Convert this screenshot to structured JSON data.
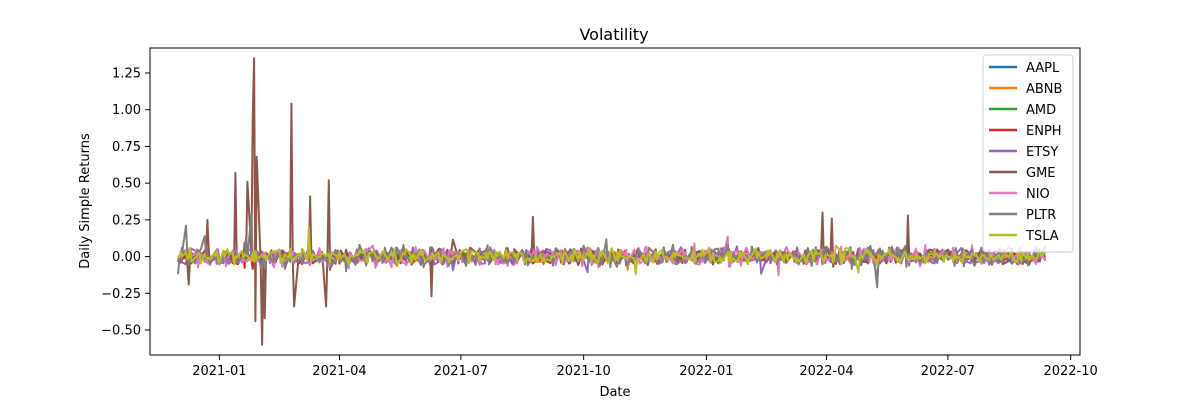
{
  "chart_data": {
    "type": "line",
    "title": "Volatility",
    "xlabel": "Date",
    "ylabel": "Daily Simple Returns",
    "xlim": [
      "2020-11-10",
      "2022-10-08"
    ],
    "ylim": [
      -0.67,
      1.42
    ],
    "x_ticks": [
      "2021-01",
      "2021-04",
      "2021-07",
      "2021-10",
      "2022-01",
      "2022-04",
      "2022-07",
      "2022-10"
    ],
    "y_ticks": [
      -0.5,
      -0.25,
      0.0,
      0.25,
      0.5,
      0.75,
      1.0,
      1.25
    ],
    "y_tick_labels": [
      "−0.50",
      "−0.25",
      "0.00",
      "0.25",
      "0.50",
      "0.75",
      "1.00",
      "1.25"
    ],
    "grid": false,
    "legend_position": "upper right",
    "date_range": [
      "2020-12-01",
      "2022-09-12"
    ],
    "series": [
      {
        "name": "AAPL",
        "color": "#1f77b4",
        "amplitude": 0.022
      },
      {
        "name": "ABNB",
        "color": "#ff7f0e",
        "amplitude": 0.035
      },
      {
        "name": "AMD",
        "color": "#2ca02c",
        "amplitude": 0.032
      },
      {
        "name": "ENPH",
        "color": "#d62728",
        "amplitude": 0.045
      },
      {
        "name": "ETSY",
        "color": "#9467bd",
        "amplitude": 0.042
      },
      {
        "name": "GME",
        "color": "#8c564b",
        "amplitude": 0.045,
        "spikes": [
          {
            "date": "2020-12-09",
            "value": -0.19
          },
          {
            "date": "2020-12-23",
            "value": 0.25
          },
          {
            "date": "2021-01-13",
            "value": 0.57
          },
          {
            "date": "2021-01-22",
            "value": 0.51
          },
          {
            "date": "2021-01-26",
            "value": 0.93
          },
          {
            "date": "2021-01-27",
            "value": 1.35
          },
          {
            "date": "2021-01-28",
            "value": -0.44
          },
          {
            "date": "2021-01-29",
            "value": 0.68
          },
          {
            "date": "2021-02-02",
            "value": -0.6
          },
          {
            "date": "2021-02-04",
            "value": -0.42
          },
          {
            "date": "2021-02-24",
            "value": 1.04
          },
          {
            "date": "2021-02-26",
            "value": -0.34
          },
          {
            "date": "2021-03-10",
            "value": 0.41
          },
          {
            "date": "2021-03-22",
            "value": -0.34
          },
          {
            "date": "2021-03-24",
            "value": 0.52
          },
          {
            "date": "2021-06-09",
            "value": -0.27
          },
          {
            "date": "2021-08-24",
            "value": 0.27
          },
          {
            "date": "2022-03-29",
            "value": 0.3
          },
          {
            "date": "2022-04-05",
            "value": 0.26
          },
          {
            "date": "2022-06-01",
            "value": 0.28
          }
        ]
      },
      {
        "name": "NIO",
        "color": "#e377c2",
        "amplitude": 0.05
      },
      {
        "name": "PLTR",
        "color": "#7f7f7f",
        "amplitude": 0.055,
        "spikes": [
          {
            "date": "2020-12-01",
            "value": -0.12
          },
          {
            "date": "2020-12-07",
            "value": 0.21
          },
          {
            "date": "2021-01-25",
            "value": 0.29
          },
          {
            "date": "2022-05-09",
            "value": -0.21
          }
        ]
      },
      {
        "name": "TSLA",
        "color": "#bcbd22",
        "amplitude": 0.04,
        "spikes": [
          {
            "date": "2021-03-09",
            "value": 0.2
          },
          {
            "date": "2021-11-09",
            "value": -0.12
          }
        ]
      }
    ]
  }
}
